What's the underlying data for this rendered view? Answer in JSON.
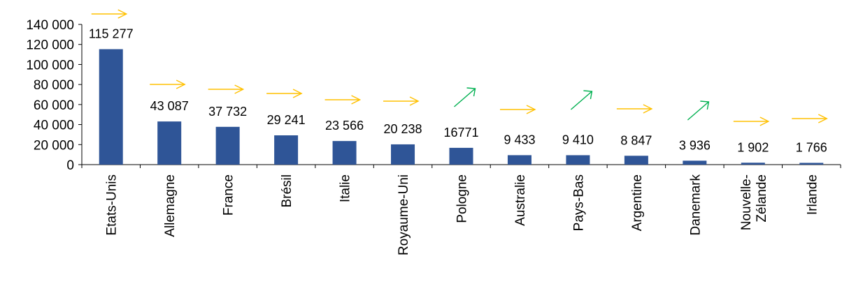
{
  "chart_data": {
    "type": "bar",
    "title": "",
    "xlabel": "",
    "ylabel": "",
    "ylim": [
      0,
      140000
    ],
    "yticks": [
      0,
      20000,
      40000,
      60000,
      80000,
      100000,
      120000,
      140000
    ],
    "ytick_labels": [
      "0",
      "20 000",
      "40 000",
      "60 000",
      "80 000",
      "100 000",
      "120 000",
      "140 000"
    ],
    "grid": false,
    "legend": "none",
    "bar_color": "#2F5597",
    "categories": [
      [
        "Etats-Unis"
      ],
      [
        "Allemagne"
      ],
      [
        "France"
      ],
      [
        "Brésil"
      ],
      [
        "Italie"
      ],
      [
        "Royaume-Uni"
      ],
      [
        "Pologne"
      ],
      [
        "Australie"
      ],
      [
        "Pays-Bas"
      ],
      [
        "Argentine"
      ],
      [
        "Danemark"
      ],
      [
        "Nouvelle-",
        "Zélande"
      ],
      [
        "Irlande"
      ]
    ],
    "values": [
      115277,
      43087,
      37732,
      29241,
      23566,
      20238,
      16771,
      9433,
      9410,
      8847,
      3936,
      1902,
      1766
    ],
    "value_labels": [
      "115 277",
      "43 087",
      "37 732",
      "29 241",
      "23 566",
      "20 238",
      "16771",
      "9 433",
      "9 410",
      "8 847",
      "3 936",
      "1 902",
      "1 766"
    ],
    "trends": [
      "flat",
      "flat",
      "flat",
      "flat",
      "flat",
      "flat",
      "up",
      "flat",
      "up",
      "flat",
      "up",
      "flat",
      "flat"
    ],
    "trend_colors": {
      "flat": "#FFC000",
      "up": "#00B050"
    }
  }
}
